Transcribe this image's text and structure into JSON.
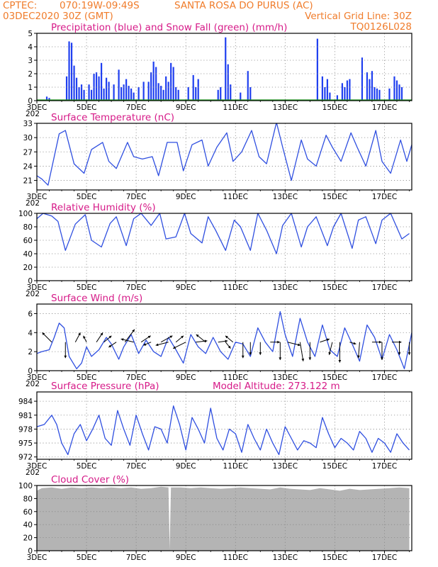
{
  "header": {
    "left1": "CPTEC:",
    "coords": "070:19W-09:49S",
    "station": "SANTA ROSA DO PURUS (AC)",
    "left2": "03DEC2020 30Z (GMT)",
    "right2": "Vertical Grid Line: 30Z",
    "right3": "TQ0126L028"
  },
  "colors": {
    "header": "#f07c2b",
    "title": "#d61a88",
    "precip": "#1f3ff0",
    "snow": "#1f9a1f",
    "line": "#2f4fe0",
    "arrow": "#000000",
    "cloud": "#b4b4b4",
    "grid": "#888888"
  },
  "x_axis": {
    "day_min": 3,
    "day_max": 18.1,
    "tick_days": [
      3,
      5,
      7,
      9,
      11,
      13,
      15,
      17
    ],
    "tick_labels": [
      "3DEC",
      "5DEC",
      "7DEC",
      "9DEC",
      "11DEC",
      "13DEC",
      "15DEC",
      "17DEC"
    ],
    "minor_label": "202"
  },
  "chart_data": [
    {
      "type": "bar",
      "title": "Precipitation (blue) and Snow Fall (green) (mm/h)",
      "ylim": [
        0,
        5
      ],
      "yticks": [
        0,
        1,
        2,
        3,
        4,
        5
      ],
      "series": [
        {
          "name": "Precipitation",
          "x": [
            3.4,
            3.5,
            4.2,
            4.3,
            4.4,
            4.5,
            4.6,
            4.7,
            4.8,
            4.9,
            5.1,
            5.2,
            5.3,
            5.4,
            5.5,
            5.6,
            5.7,
            5.8,
            5.9,
            6.1,
            6.3,
            6.4,
            6.5,
            6.6,
            6.7,
            6.8,
            6.9,
            7.1,
            7.3,
            7.5,
            7.6,
            7.7,
            7.8,
            7.9,
            8.0,
            8.1,
            8.2,
            8.3,
            8.4,
            8.5,
            8.6,
            8.7,
            9.1,
            9.3,
            9.4,
            9.5,
            10.3,
            10.4,
            10.6,
            10.7,
            10.8,
            11.2,
            11.5,
            11.6,
            14.3,
            14.5,
            14.6,
            14.7,
            14.8,
            15.1,
            15.3,
            15.4,
            15.5,
            15.6,
            16.1,
            16.3,
            16.4,
            16.5,
            16.6,
            16.7,
            16.8,
            17.2,
            17.4,
            17.5,
            17.6,
            17.7
          ],
          "values": [
            0.3,
            0.2,
            1.8,
            4.4,
            4.3,
            2.6,
            1.7,
            1.0,
            1.2,
            0.8,
            1.2,
            0.8,
            2.0,
            2.1,
            1.8,
            2.8,
            0.9,
            1.7,
            1.4,
            1.2,
            2.3,
            1.0,
            1.2,
            1.6,
            1.1,
            0.9,
            0.6,
            1.0,
            1.4,
            1.4,
            2.1,
            2.9,
            2.5,
            1.3,
            1.1,
            0.8,
            1.8,
            1.4,
            2.8,
            2.5,
            1.0,
            0.8,
            1.0,
            1.9,
            1.0,
            1.6,
            0.8,
            1.0,
            4.7,
            2.7,
            1.2,
            0.6,
            2.2,
            1.0,
            4.6,
            1.8,
            1.0,
            1.6,
            0.6,
            0.4,
            1.3,
            1.0,
            1.5,
            1.6,
            3.2,
            2.1,
            1.6,
            2.2,
            1.0,
            0.9,
            0.8,
            0.9,
            1.8,
            1.5,
            1.2,
            1.0
          ]
        },
        {
          "name": "Snow Fall",
          "x": [],
          "values": []
        }
      ]
    },
    {
      "type": "line",
      "title": "Surface Temperature (nC)",
      "ylim": [
        19,
        33
      ],
      "yticks": [
        21,
        24,
        27,
        30,
        33
      ],
      "series": [
        {
          "name": "Temperature",
          "x": [
            3.0,
            3.2,
            3.45,
            3.9,
            4.15,
            4.5,
            4.9,
            5.2,
            5.65,
            5.9,
            6.2,
            6.65,
            6.9,
            7.25,
            7.65,
            7.9,
            8.25,
            8.65,
            8.9,
            9.25,
            9.65,
            9.9,
            10.25,
            10.65,
            10.9,
            11.25,
            11.65,
            11.95,
            12.25,
            12.65,
            12.9,
            13.25,
            13.65,
            13.9,
            14.25,
            14.65,
            14.9,
            15.25,
            15.65,
            15.9,
            16.25,
            16.65,
            16.9,
            17.25,
            17.65,
            17.9,
            18.1
          ],
          "values": [
            22,
            21.3,
            20.0,
            30.8,
            31.5,
            24.5,
            22.5,
            27.5,
            29,
            25,
            23.5,
            29,
            26,
            25.5,
            26,
            22,
            29,
            29,
            23,
            28.5,
            29.5,
            24,
            28,
            31,
            25,
            27,
            31.5,
            26,
            24.5,
            33.2,
            28,
            21,
            29.5,
            25.5,
            24,
            30.5,
            28,
            25,
            31,
            28,
            24,
            31.5,
            25,
            22.5,
            29.5,
            25,
            28.5
          ]
        }
      ]
    },
    {
      "type": "line",
      "title": "Relative Humidity (%)",
      "ylim": [
        0,
        100
      ],
      "yticks": [
        0,
        20,
        40,
        60,
        80,
        100
      ],
      "series": [
        {
          "name": "Relative Humidity",
          "x": [
            3.0,
            3.25,
            3.6,
            3.85,
            4.15,
            4.55,
            4.95,
            5.2,
            5.6,
            5.95,
            6.2,
            6.6,
            6.9,
            7.2,
            7.6,
            7.95,
            8.2,
            8.6,
            8.95,
            9.2,
            9.65,
            9.9,
            10.2,
            10.6,
            10.95,
            11.2,
            11.6,
            11.9,
            12.25,
            12.65,
            12.9,
            13.25,
            13.65,
            13.9,
            14.25,
            14.7,
            14.95,
            15.25,
            15.7,
            15.95,
            16.25,
            16.65,
            16.9,
            17.25,
            17.7,
            18.0
          ],
          "values": [
            92,
            100,
            96,
            88,
            45,
            84,
            98,
            60,
            50,
            85,
            95,
            52,
            92,
            100,
            82,
            100,
            62,
            65,
            100,
            70,
            56,
            95,
            75,
            45,
            90,
            80,
            45,
            100,
            75,
            40,
            82,
            100,
            50,
            80,
            95,
            52,
            80,
            100,
            48,
            90,
            95,
            55,
            90,
            100,
            62,
            70
          ]
        }
      ]
    },
    {
      "type": "line",
      "title": "Surface Wind (m/s)",
      "ylim": [
        0,
        7
      ],
      "yticks": [
        0,
        2,
        4,
        6
      ],
      "series": [
        {
          "name": "Wind speed",
          "x": [
            3.0,
            3.2,
            3.5,
            3.7,
            3.9,
            4.1,
            4.3,
            4.6,
            4.8,
            5.0,
            5.2,
            5.5,
            5.8,
            6.0,
            6.3,
            6.5,
            6.8,
            7.1,
            7.4,
            7.7,
            8.0,
            8.3,
            8.6,
            8.9,
            9.2,
            9.5,
            9.8,
            10.1,
            10.4,
            10.7,
            11.0,
            11.3,
            11.6,
            11.9,
            12.2,
            12.5,
            12.8,
            13.0,
            13.3,
            13.6,
            13.9,
            14.2,
            14.5,
            14.8,
            15.1,
            15.4,
            15.7,
            16.0,
            16.3,
            16.6,
            16.9,
            17.2,
            17.5,
            17.8,
            18.1
          ],
          "values": [
            1.8,
            2.0,
            2.2,
            3.5,
            5.0,
            4.5,
            1.5,
            0.2,
            0.8,
            2.5,
            1.5,
            2.2,
            3.5,
            2.8,
            1.2,
            2.5,
            3.8,
            1.8,
            3.2,
            2.0,
            1.5,
            3.5,
            2.2,
            0.8,
            3.8,
            2.5,
            1.8,
            3.5,
            2.0,
            1.2,
            3.0,
            2.8,
            1.5,
            4.5,
            3.0,
            2.0,
            6.2,
            3.8,
            1.5,
            5.5,
            3.0,
            1.5,
            4.8,
            2.2,
            1.5,
            4.5,
            2.8,
            1.0,
            4.8,
            3.5,
            1.2,
            3.8,
            2.2,
            0.2,
            4.0
          ]
        }
      ],
      "arrows": {
        "x": [
          3.6,
          4.15,
          4.55,
          5.0,
          5.4,
          5.7,
          6.2,
          6.55,
          6.9,
          7.2,
          7.6,
          8.0,
          8.3,
          8.6,
          9.0,
          9.4,
          9.8,
          10.3,
          10.6,
          10.9,
          11.3,
          11.6,
          12.0,
          12.4,
          12.8,
          13.1,
          13.6,
          14.0,
          14.4,
          14.9,
          15.2,
          15.6,
          16.0,
          16.5,
          16.9,
          17.3,
          17.6,
          18.0
        ],
        "u": [
          -1.5,
          0.0,
          0.8,
          -0.5,
          1.0,
          1.2,
          -1.2,
          1.5,
          -2.0,
          1.5,
          -1.2,
          1.8,
          -2.0,
          1.2,
          -2.0,
          1.8,
          -1.5,
          1.5,
          0.8,
          -1.2,
          0.0,
          0.0,
          0.0,
          1.5,
          0.0,
          2.0,
          0.5,
          0.0,
          1.5,
          -0.5,
          0.0,
          1.0,
          -0.2,
          1.5,
          0.0,
          1.5,
          0.0,
          0.0
        ],
        "v": [
          1.5,
          -2.5,
          1.5,
          1.0,
          1.5,
          1.0,
          -0.8,
          2.0,
          0.5,
          1.0,
          -0.5,
          1.0,
          -0.5,
          1.0,
          -1.0,
          0.2,
          1.2,
          0.2,
          -1.0,
          1.0,
          -2.5,
          -2.0,
          -2.0,
          0.0,
          -2.8,
          -0.5,
          -3.0,
          -2.8,
          0.5,
          -2.0,
          -3.2,
          -0.3,
          -2.5,
          0.0,
          -2.8,
          0.0,
          -2.0,
          -2.0
        ]
      }
    },
    {
      "type": "line",
      "title": "Surface Pressure (hPa)",
      "annotation": "Model Altitude: 273.122 m",
      "ylim": [
        971.5,
        986
      ],
      "yticks": [
        972,
        975,
        978,
        981,
        984
      ],
      "series": [
        {
          "name": "Pressure",
          "x": [
            3.0,
            3.3,
            3.6,
            3.8,
            4.0,
            4.25,
            4.5,
            4.75,
            5.0,
            5.25,
            5.5,
            5.75,
            6.0,
            6.25,
            6.5,
            6.75,
            7.0,
            7.25,
            7.5,
            7.75,
            8.0,
            8.25,
            8.5,
            8.75,
            9.0,
            9.25,
            9.5,
            9.75,
            10.0,
            10.25,
            10.5,
            10.75,
            11.0,
            11.25,
            11.5,
            11.75,
            12.0,
            12.25,
            12.5,
            12.75,
            13.0,
            13.25,
            13.5,
            13.75,
            14.0,
            14.25,
            14.5,
            14.75,
            15.0,
            15.25,
            15.5,
            15.75,
            16.0,
            16.25,
            16.5,
            16.75,
            17.0,
            17.25,
            17.5,
            17.75,
            18.0
          ],
          "values": [
            978.5,
            979,
            981,
            979,
            975,
            972.5,
            977,
            979,
            975.5,
            978,
            981,
            976,
            974.5,
            982,
            978,
            974.5,
            981,
            977,
            973.5,
            978.5,
            978,
            975,
            983,
            979,
            973.5,
            980.5,
            978,
            975,
            982.5,
            976,
            973.5,
            978,
            977,
            973,
            979,
            976,
            973.5,
            978,
            975,
            972.5,
            978.5,
            976,
            973.5,
            975.5,
            975,
            974,
            980.5,
            977,
            974,
            976,
            975,
            973.5,
            977.5,
            976,
            973,
            976,
            975,
            973,
            977,
            975,
            973.5
          ]
        }
      ]
    },
    {
      "type": "area",
      "title": "Cloud Cover (%)",
      "ylim": [
        0,
        100
      ],
      "yticks": [
        0,
        20,
        40,
        60,
        80,
        100
      ],
      "series": [
        {
          "name": "Cloud Cover",
          "x": [
            3.0,
            3.2,
            3.6,
            4.0,
            4.4,
            4.8,
            5.2,
            5.6,
            6.0,
            6.4,
            6.8,
            7.2,
            7.6,
            8.0,
            8.3,
            8.35,
            8.4,
            8.8,
            9.2,
            9.6,
            10.0,
            10.4,
            10.8,
            11.2,
            11.6,
            12.0,
            12.4,
            12.8,
            13.2,
            13.6,
            14.0,
            14.4,
            14.8,
            15.2,
            15.6,
            16.0,
            16.4,
            16.8,
            17.2,
            17.6,
            18.0
          ],
          "values": [
            92,
            96,
            97,
            95,
            97,
            96,
            97,
            96,
            97,
            96,
            97,
            95,
            96,
            98,
            97,
            2,
            97,
            97,
            96,
            97,
            96,
            95,
            96,
            97,
            96,
            95,
            94,
            97,
            95,
            94,
            93,
            96,
            94,
            92,
            95,
            93,
            94,
            95,
            96,
            97,
            96
          ]
        }
      ]
    }
  ]
}
